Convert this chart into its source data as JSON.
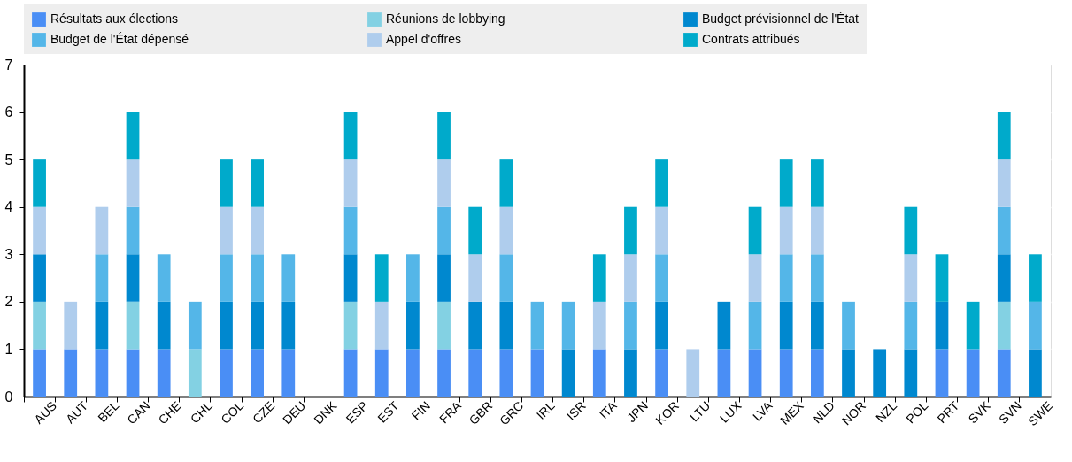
{
  "chart_data": {
    "type": "bar",
    "stacked": true,
    "categories": [
      "AUS",
      "AUT",
      "BEL",
      "CAN",
      "CHE",
      "CHL",
      "COL",
      "CZE",
      "DEU",
      "DNK",
      "ESP",
      "EST",
      "FIN",
      "FRA",
      "GBR",
      "GRC",
      "IRL",
      "ISR",
      "ITA",
      "JPN",
      "KOR",
      "LTU",
      "LUX",
      "LVA",
      "MEX",
      "NLD",
      "NOR",
      "NZL",
      "POL",
      "PRT",
      "SVK",
      "SVN",
      "SWE"
    ],
    "series": [
      {
        "name": "Résultats aux élections",
        "color": "#4a8ef5",
        "values": [
          1,
          1,
          1,
          1,
          1,
          0,
          1,
          1,
          1,
          0,
          1,
          1,
          1,
          1,
          1,
          1,
          1,
          0,
          1,
          0,
          1,
          0,
          1,
          1,
          1,
          1,
          0,
          0,
          0,
          1,
          1,
          1,
          0
        ]
      },
      {
        "name": "Réunions de lobbying",
        "color": "#83d1e3",
        "values": [
          1,
          0,
          0,
          1,
          0,
          1,
          0,
          0,
          0,
          0,
          1,
          0,
          0,
          1,
          0,
          0,
          0,
          0,
          0,
          0,
          0,
          0,
          0,
          0,
          0,
          0,
          0,
          0,
          0,
          0,
          0,
          1,
          0
        ]
      },
      {
        "name": "Budget prévisionnel de l'État",
        "color": "#0088cf",
        "values": [
          1,
          0,
          1,
          1,
          1,
          0,
          1,
          1,
          1,
          0,
          1,
          0,
          1,
          1,
          1,
          1,
          0,
          1,
          0,
          1,
          1,
          0,
          1,
          0,
          1,
          1,
          1,
          1,
          1,
          1,
          0,
          1,
          1
        ]
      },
      {
        "name": "Budget de l'État dépensé",
        "color": "#54b6e8",
        "values": [
          0,
          0,
          1,
          1,
          1,
          1,
          1,
          1,
          1,
          0,
          1,
          0,
          1,
          1,
          0,
          1,
          1,
          1,
          0,
          1,
          1,
          0,
          0,
          1,
          1,
          1,
          1,
          0,
          1,
          0,
          0,
          1,
          1
        ]
      },
      {
        "name": "Appel d'offres",
        "color": "#afcded",
        "values": [
          1,
          1,
          1,
          1,
          0,
          0,
          1,
          1,
          0,
          0,
          1,
          1,
          0,
          1,
          1,
          1,
          0,
          0,
          1,
          1,
          1,
          1,
          0,
          1,
          1,
          1,
          0,
          0,
          1,
          0,
          0,
          1,
          0
        ]
      },
      {
        "name": "Contrats attribués",
        "color": "#00aacb",
        "values": [
          1,
          0,
          0,
          1,
          0,
          0,
          1,
          1,
          0,
          0,
          1,
          1,
          0,
          1,
          1,
          1,
          0,
          0,
          1,
          1,
          1,
          0,
          0,
          1,
          1,
          1,
          0,
          0,
          1,
          1,
          1,
          1,
          1
        ]
      }
    ],
    "ylim": [
      0,
      7
    ],
    "yticks": [
      0,
      1,
      2,
      3,
      4,
      5,
      6,
      7
    ],
    "grid": true,
    "legend": "top"
  }
}
